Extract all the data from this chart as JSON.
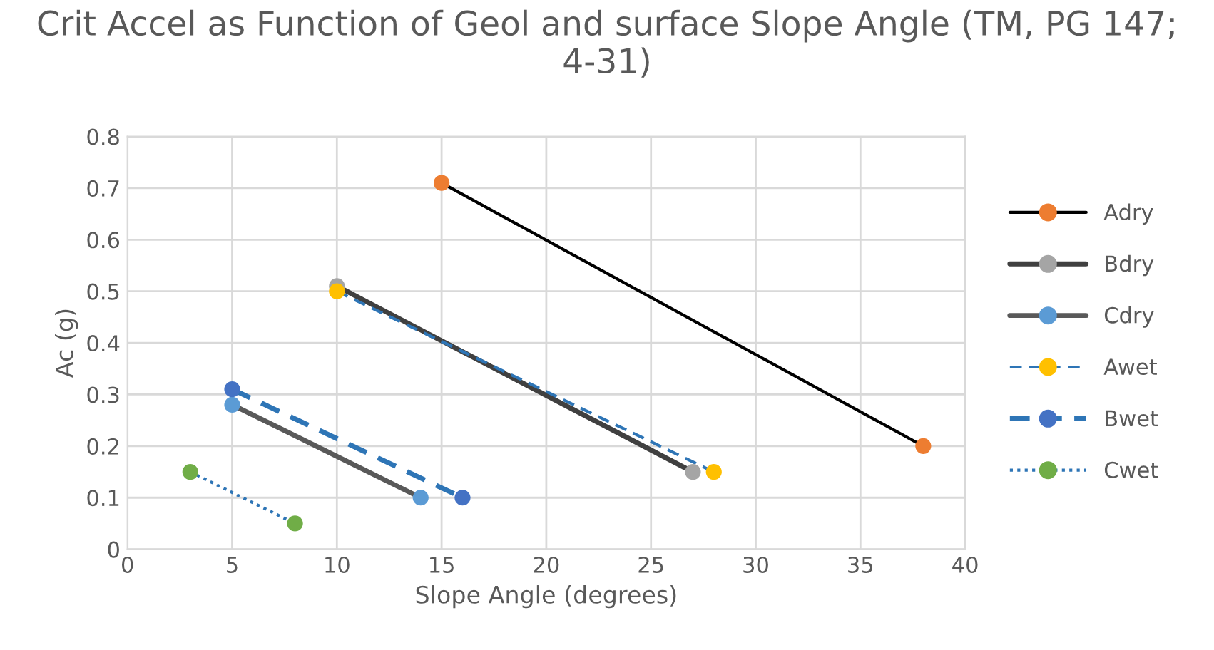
{
  "chart_data": {
    "type": "line",
    "title": "Crit Accel as Function of Geol and surface Slope Angle (TM, PG 147; 4-31)",
    "xlabel": "Slope Angle (degrees)",
    "ylabel": "Ac (g)",
    "xlim": [
      0,
      40
    ],
    "xticks": [
      0,
      5,
      10,
      15,
      20,
      25,
      30,
      35,
      40
    ],
    "ylim": [
      0,
      0.8
    ],
    "yticks": [
      0,
      0.1,
      0.2,
      0.3,
      0.4,
      0.5,
      0.6,
      0.7,
      0.8
    ],
    "grid": true,
    "legend": "right",
    "marker": "circle",
    "series": [
      {
        "name": "Adry",
        "color": "#000000",
        "colors": [
          "#ed7d31",
          "#ed7d31"
        ],
        "line_style": "solid",
        "x": [
          15,
          38
        ],
        "values": [
          0.71,
          0.2
        ]
      },
      {
        "name": "Bdry",
        "color": "#404040",
        "colors": [
          "#a5a5a5",
          "#a5a5a5"
        ],
        "line_style": "solid",
        "x": [
          10,
          27
        ],
        "values": [
          0.51,
          0.15
        ]
      },
      {
        "name": "Cdry",
        "color": "#595959",
        "colors": [
          "#5b9bd5",
          "#5b9bd5"
        ],
        "line_style": "solid",
        "x": [
          5,
          14
        ],
        "values": [
          0.28,
          0.1
        ]
      },
      {
        "name": "Awet",
        "color": "#2e75b6",
        "colors": [
          "#ffc000",
          "#ffc000"
        ],
        "line_style": "dashed",
        "x": [
          10,
          28
        ],
        "values": [
          0.5,
          0.15
        ]
      },
      {
        "name": "Bwet",
        "color": "#2e75b6",
        "colors": [
          "#4472c4",
          "#4472c4"
        ],
        "line_style": "dashed",
        "x": [
          5,
          16
        ],
        "values": [
          0.31,
          0.1
        ]
      },
      {
        "name": "Cwet",
        "color": "#2e75b6",
        "colors": [
          "#70ad47",
          "#70ad47"
        ],
        "line_style": "dotted",
        "x": [
          3,
          8
        ],
        "values": [
          0.15,
          0.05
        ]
      }
    ]
  }
}
